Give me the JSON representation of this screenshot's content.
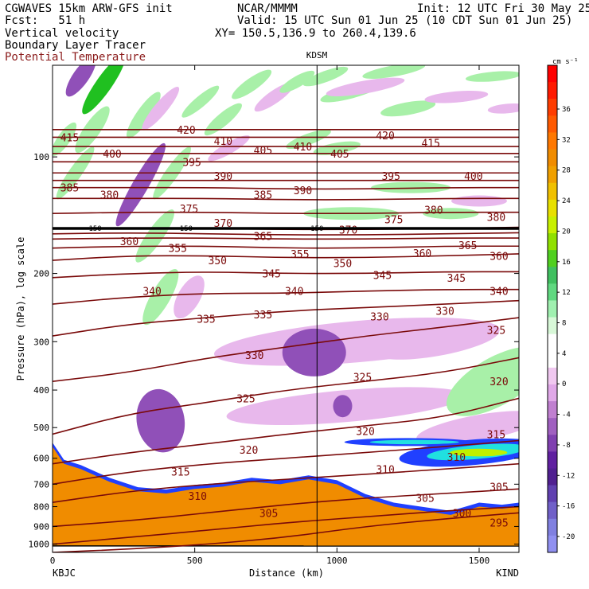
{
  "header": {
    "model": "CGWAVES 15km ARW-GFS init",
    "org": "NCAR/MMMM",
    "init": "Init: 12 UTC Fri 30 May 25",
    "fcst": "Fcst:   51 h",
    "valid": "Valid: 15 UTC Sun 01 Jun 25 (10 CDT Sun 01 Jun 25)",
    "field1": "Vertical velocity",
    "field2": "Boundary Layer Tracer",
    "field3": "Potential Temperature",
    "xy": "XY= 150.5,136.9 to 260.4,139.6"
  },
  "colors": {
    "theta": "#7a0a0a",
    "terrain": "#f08c00"
  },
  "chart_data": {
    "type": "heatmap",
    "xlabel": "Distance (km)",
    "ylabel": "Pressure (hPa), log scale",
    "x_ticks": [
      "0",
      "500",
      "1000",
      "1500"
    ],
    "xlim": [
      0,
      1640
    ],
    "y_ticks": [
      "100",
      "200",
      "300",
      "400",
      "500",
      "600",
      "700",
      "800",
      "900",
      "1000"
    ],
    "y_log_scale": true,
    "ylim": [
      1050,
      58
    ],
    "station_left": "KBJC",
    "station_right": "KIND",
    "station_marker": {
      "label": "KDSM",
      "x": 930
    },
    "dynamic_tropopause_label": "150",
    "dynamic_tropopause_pressure": 153,
    "colorbar": {
      "units": "cm s⁻¹",
      "labels": [
        "36",
        "32",
        "28",
        "24",
        "20",
        "16",
        "12",
        "8",
        "4",
        "0",
        "-4",
        "-8",
        "-12",
        "-16",
        "-20"
      ],
      "colors": [
        "#ff0000",
        "#ff1a00",
        "#ff3d00",
        "#ff5a00",
        "#ff7800",
        "#f08c00",
        "#f0a000",
        "#f0c000",
        "#e8e000",
        "#c8f000",
        "#90e000",
        "#50d020",
        "#40c060",
        "#60d880",
        "#a0f0b0",
        "#d8f8d8",
        "#ffffff",
        "#ffffff",
        "#f0c8f0",
        "#e0a8e8",
        "#c080d0",
        "#a060c0",
        "#8040b0",
        "#6020a0",
        "#502090",
        "#6040b0",
        "#7060c8",
        "#8080e0",
        "#9090f0"
      ]
    },
    "theta_contours": [
      {
        "theta": 295,
        "p": [
          1050,
          1030,
          1000,
          960,
          900,
          860,
          830
        ]
      },
      {
        "theta": 300,
        "p": [
          1000,
          960,
          920,
          880,
          850,
          820,
          800
        ]
      },
      {
        "theta": 305,
        "p": [
          900,
          870,
          830,
          790,
          760,
          740,
          720
        ]
      },
      {
        "theta": 310,
        "p": [
          780,
          730,
          700,
          680,
          660,
          640,
          620
        ]
      },
      {
        "theta": 315,
        "p": [
          700,
          650,
          620,
          600,
          580,
          560,
          540
        ]
      },
      {
        "theta": 320,
        "p": [
          620,
          580,
          550,
          520,
          495,
          470,
          420
        ]
      },
      {
        "theta": 325,
        "p": [
          520,
          460,
          430,
          400,
          380,
          360,
          330
        ]
      },
      {
        "theta": 330,
        "p": [
          380,
          360,
          330,
          310,
          290,
          275,
          260
        ]
      },
      {
        "theta": 335,
        "p": [
          290,
          270,
          260,
          250,
          245,
          240,
          235
        ]
      },
      {
        "theta": 340,
        "p": [
          240,
          230,
          225,
          225,
          222,
          220,
          220
        ]
      },
      {
        "theta": 345,
        "p": [
          205,
          200,
          198,
          200,
          200,
          198,
          198
        ]
      },
      {
        "theta": 350,
        "p": [
          185,
          180,
          180,
          182,
          182,
          180,
          178
        ]
      },
      {
        "theta": 355,
        "p": [
          172,
          170,
          170,
          172,
          172,
          170,
          170
        ]
      },
      {
        "theta": 360,
        "p": [
          163,
          162,
          162,
          163,
          163,
          162,
          162
        ]
      },
      {
        "theta": 365,
        "p": [
          158,
          157,
          158,
          159,
          159,
          158,
          157
        ]
      },
      {
        "theta": 370,
        "p": [
          153,
          153,
          153,
          154,
          154,
          153,
          152
        ]
      },
      {
        "theta": 375,
        "p": [
          140,
          139,
          139,
          140,
          140,
          139,
          139
        ]
      },
      {
        "theta": 380,
        "p": [
          128,
          128,
          128,
          129,
          129,
          128,
          128
        ]
      },
      {
        "theta": 385,
        "p": [
          120,
          120,
          120,
          121,
          121,
          120,
          120
        ]
      },
      {
        "theta": 390,
        "p": [
          115,
          115,
          115,
          115,
          115,
          115,
          115
        ]
      },
      {
        "theta": 395,
        "p": [
          110,
          110,
          110,
          110,
          110,
          110,
          110
        ]
      },
      {
        "theta": 400,
        "p": [
          103,
          103,
          103,
          103,
          103,
          103,
          103
        ]
      },
      {
        "theta": 405,
        "p": [
          98,
          98,
          98,
          98,
          98,
          98,
          98
        ]
      },
      {
        "theta": 410,
        "p": [
          94,
          94,
          94,
          94,
          94,
          94,
          94
        ]
      },
      {
        "theta": 415,
        "p": [
          89,
          89,
          89,
          89,
          89,
          89,
          89
        ]
      },
      {
        "theta": 420,
        "p": [
          85,
          85,
          85,
          85,
          85,
          85,
          85
        ]
      }
    ],
    "theta_contour_x": [
      0,
      270,
      550,
      820,
      1100,
      1380,
      1640
    ],
    "theta_labels": [
      {
        "text": "415",
        "x": 60,
        "p": 89
      },
      {
        "text": "420",
        "x": 470,
        "p": 85
      },
      {
        "text": "420",
        "x": 1170,
        "p": 88
      },
      {
        "text": "415",
        "x": 1330,
        "p": 92
      },
      {
        "text": "410",
        "x": 600,
        "p": 91
      },
      {
        "text": "410",
        "x": 880,
        "p": 94
      },
      {
        "text": "400",
        "x": 210,
        "p": 98
      },
      {
        "text": "405",
        "x": 740,
        "p": 96
      },
      {
        "text": "405",
        "x": 1010,
        "p": 98
      },
      {
        "text": "395",
        "x": 490,
        "p": 103
      },
      {
        "text": "395",
        "x": 1190,
        "p": 112
      },
      {
        "text": "400",
        "x": 1480,
        "p": 112
      },
      {
        "text": "385",
        "x": 60,
        "p": 120
      },
      {
        "text": "380",
        "x": 200,
        "p": 125
      },
      {
        "text": "390",
        "x": 600,
        "p": 112
      },
      {
        "text": "385",
        "x": 740,
        "p": 125
      },
      {
        "text": "390",
        "x": 880,
        "p": 122
      },
      {
        "text": "375",
        "x": 480,
        "p": 136
      },
      {
        "text": "375",
        "x": 1200,
        "p": 145
      },
      {
        "text": "380",
        "x": 1340,
        "p": 137
      },
      {
        "text": "380",
        "x": 1560,
        "p": 143
      },
      {
        "text": "370",
        "x": 600,
        "p": 148
      },
      {
        "text": "370",
        "x": 1040,
        "p": 154
      },
      {
        "text": "365",
        "x": 740,
        "p": 160
      },
      {
        "text": "365",
        "x": 1460,
        "p": 169
      },
      {
        "text": "360",
        "x": 270,
        "p": 165
      },
      {
        "text": "360",
        "x": 1300,
        "p": 177
      },
      {
        "text": "360",
        "x": 1570,
        "p": 180
      },
      {
        "text": "355",
        "x": 440,
        "p": 172
      },
      {
        "text": "355",
        "x": 870,
        "p": 178
      },
      {
        "text": "350",
        "x": 580,
        "p": 185
      },
      {
        "text": "350",
        "x": 1020,
        "p": 188
      },
      {
        "text": "345",
        "x": 770,
        "p": 200
      },
      {
        "text": "345",
        "x": 1160,
        "p": 202
      },
      {
        "text": "345",
        "x": 1420,
        "p": 205
      },
      {
        "text": "340",
        "x": 350,
        "p": 222
      },
      {
        "text": "340",
        "x": 850,
        "p": 222
      },
      {
        "text": "340",
        "x": 1570,
        "p": 222
      },
      {
        "text": "335",
        "x": 540,
        "p": 262
      },
      {
        "text": "335",
        "x": 740,
        "p": 255
      },
      {
        "text": "330",
        "x": 1150,
        "p": 258
      },
      {
        "text": "330",
        "x": 1380,
        "p": 250
      },
      {
        "text": "330",
        "x": 710,
        "p": 325
      },
      {
        "text": "325",
        "x": 1560,
        "p": 280
      },
      {
        "text": "325",
        "x": 1090,
        "p": 370
      },
      {
        "text": "325",
        "x": 680,
        "p": 420
      },
      {
        "text": "320",
        "x": 1570,
        "p": 380
      },
      {
        "text": "320",
        "x": 1100,
        "p": 510
      },
      {
        "text": "320",
        "x": 690,
        "p": 570
      },
      {
        "text": "315",
        "x": 450,
        "p": 650
      },
      {
        "text": "310",
        "x": 510,
        "p": 750
      },
      {
        "text": "310",
        "x": 1170,
        "p": 640
      },
      {
        "text": "310",
        "x": 1420,
        "p": 595
      },
      {
        "text": "315",
        "x": 1560,
        "p": 520
      },
      {
        "text": "305",
        "x": 760,
        "p": 830
      },
      {
        "text": "305",
        "x": 1310,
        "p": 760
      },
      {
        "text": "305",
        "x": 1570,
        "p": 710
      },
      {
        "text": "300",
        "x": 1440,
        "p": 830
      },
      {
        "text": "295",
        "x": 1570,
        "p": 880
      }
    ],
    "terrain_top_p": [
      560,
      620,
      640,
      690,
      730,
      740,
      720,
      710,
      690,
      700,
      680,
      700,
      760,
      800,
      820,
      840,
      820,
      800,
      810,
      800
    ],
    "terrain_x": [
      0,
      40,
      100,
      200,
      300,
      400,
      500,
      600,
      700,
      800,
      900,
      1000,
      1100,
      1200,
      1300,
      1400,
      1450,
      1500,
      1580,
      1640
    ],
    "w_blobs": [
      {
        "x": 180,
        "p": 65,
        "rx": 45,
        "ry": 10,
        "w": 8,
        "rot": -55
      },
      {
        "x": 100,
        "p": 62,
        "rx": 30,
        "ry": 10,
        "w": -8,
        "rot": -55
      },
      {
        "x": 140,
        "p": 85,
        "rx": 35,
        "ry": 10,
        "w": 4,
        "rot": -55
      },
      {
        "x": 320,
        "p": 78,
        "rx": 35,
        "ry": 9,
        "w": 4,
        "rot": -55
      },
      {
        "x": 310,
        "p": 118,
        "rx": 60,
        "ry": 10,
        "w": -8,
        "rot": -60
      },
      {
        "x": 360,
        "p": 160,
        "rx": 40,
        "ry": 10,
        "w": 4,
        "rot": -55
      },
      {
        "x": 380,
        "p": 75,
        "rx": 35,
        "ry": 8,
        "w": -4,
        "rot": -50
      },
      {
        "x": 420,
        "p": 110,
        "rx": 40,
        "ry": 8,
        "w": 4,
        "rot": -55
      },
      {
        "x": 80,
        "p": 110,
        "rx": 40,
        "ry": 8,
        "w": 4,
        "rot": -55
      },
      {
        "x": 40,
        "p": 90,
        "rx": 25,
        "ry": 8,
        "w": 4,
        "rot": -55
      },
      {
        "x": 520,
        "p": 72,
        "rx": 30,
        "ry": 7,
        "w": 4,
        "rot": -40
      },
      {
        "x": 600,
        "p": 80,
        "rx": 30,
        "ry": 8,
        "w": 4,
        "rot": -40
      },
      {
        "x": 700,
        "p": 65,
        "rx": 30,
        "ry": 8,
        "w": 4,
        "rot": -35
      },
      {
        "x": 780,
        "p": 70,
        "rx": 30,
        "ry": 8,
        "w": -4,
        "rot": -35
      },
      {
        "x": 860,
        "p": 64,
        "rx": 25,
        "ry": 7,
        "w": 4,
        "rot": -30
      },
      {
        "x": 960,
        "p": 62,
        "rx": 30,
        "ry": 7,
        "w": 4,
        "rot": -20
      },
      {
        "x": 1050,
        "p": 68,
        "rx": 40,
        "ry": 8,
        "w": 4,
        "rot": -15
      },
      {
        "x": 1100,
        "p": 66,
        "rx": 50,
        "ry": 8,
        "w": -4,
        "rot": -10
      },
      {
        "x": 1250,
        "p": 75,
        "rx": 35,
        "ry": 8,
        "w": 4,
        "rot": -10
      },
      {
        "x": 1420,
        "p": 70,
        "rx": 40,
        "ry": 7,
        "w": -4,
        "rot": -5
      },
      {
        "x": 1200,
        "p": 60,
        "rx": 40,
        "ry": 7,
        "w": 4,
        "rot": -10
      },
      {
        "x": 1550,
        "p": 62,
        "rx": 35,
        "ry": 6,
        "w": 4,
        "rot": -5
      },
      {
        "x": 1600,
        "p": 75,
        "rx": 25,
        "ry": 6,
        "w": -4,
        "rot": -5
      },
      {
        "x": 900,
        "p": 90,
        "rx": 30,
        "ry": 7,
        "w": 4,
        "rot": -20
      },
      {
        "x": 620,
        "p": 95,
        "rx": 30,
        "ry": 7,
        "w": -4,
        "rot": -30
      },
      {
        "x": 1000,
        "p": 95,
        "rx": 30,
        "ry": 7,
        "w": 4,
        "rot": -10
      },
      {
        "x": 1050,
        "p": 140,
        "rx": 60,
        "ry": 8,
        "w": 4,
        "rot": 0
      },
      {
        "x": 1260,
        "p": 120,
        "rx": 50,
        "ry": 7,
        "w": 4,
        "rot": 0
      },
      {
        "x": 1400,
        "p": 140,
        "rx": 35,
        "ry": 7,
        "w": 4,
        "rot": 0
      },
      {
        "x": 1500,
        "p": 130,
        "rx": 35,
        "ry": 7,
        "w": -4,
        "rot": 0
      },
      {
        "x": 480,
        "p": 230,
        "rx": 30,
        "ry": 14,
        "w": -4,
        "rot": -60
      },
      {
        "x": 380,
        "p": 230,
        "rx": 40,
        "ry": 12,
        "w": 4,
        "rot": -60
      },
      {
        "x": 1070,
        "p": 300,
        "rx": 180,
        "ry": 26,
        "w": -4,
        "rot": -5
      },
      {
        "x": 920,
        "p": 320,
        "rx": 40,
        "ry": 30,
        "w": -8,
        "rot": 0
      },
      {
        "x": 1030,
        "p": 440,
        "rx": 150,
        "ry": 20,
        "w": -4,
        "rot": -5
      },
      {
        "x": 1350,
        "p": 300,
        "rx": 80,
        "ry": 18,
        "w": -4,
        "rot": -10
      },
      {
        "x": 1560,
        "p": 380,
        "rx": 70,
        "ry": 30,
        "w": 4,
        "rot": -30
      },
      {
        "x": 1500,
        "p": 500,
        "rx": 80,
        "ry": 16,
        "w": -4,
        "rot": -10
      },
      {
        "x": 380,
        "p": 480,
        "rx": 30,
        "ry": 40,
        "w": -8,
        "rot": -10
      },
      {
        "x": 1020,
        "p": 440,
        "rx": 12,
        "ry": 14,
        "w": -8,
        "rot": 0
      }
    ],
    "bl_tracer_blobs": [
      {
        "x": 1470,
        "p": 580,
        "rx": 90,
        "ry": 16,
        "rot": -5
      },
      {
        "x": 1250,
        "p": 545,
        "rx": 80,
        "ry": 5,
        "rot": 0
      }
    ]
  }
}
